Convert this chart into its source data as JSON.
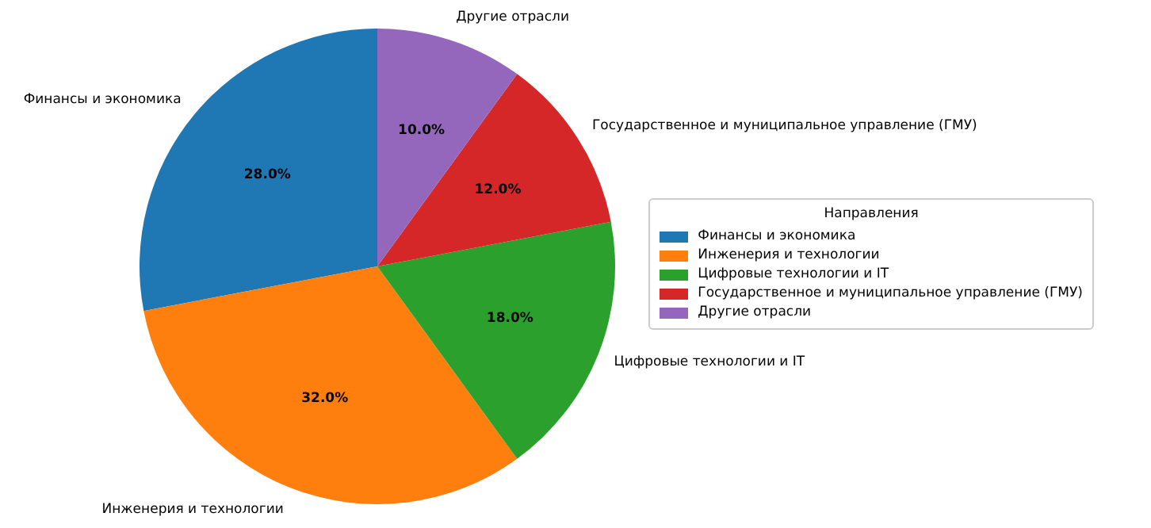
{
  "chart_data": {
    "type": "pie",
    "legend_title": "Направления",
    "legend": "right",
    "categories": [
      "Финансы и экономика",
      "Инженерия и технологии",
      "Цифровые технологии и IT",
      "Государственное и муниципальное управление (ГМУ)",
      "Другие отрасли"
    ],
    "values": [
      28,
      32,
      18,
      12,
      10
    ],
    "value_labels": [
      "28.0%",
      "32.0%",
      "18.0%",
      "12.0%",
      "10.0%"
    ],
    "colors": [
      "#1f77b4",
      "#ff7f0e",
      "#2ca02c",
      "#d62728",
      "#9467bd"
    ]
  }
}
